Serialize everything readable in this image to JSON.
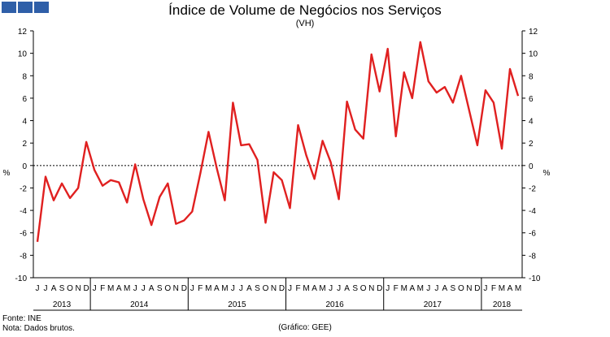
{
  "header": {
    "title": "Índice de Volume de Negócios nos Serviços",
    "subtitle": "(VH)"
  },
  "footer": {
    "source": "Fonte: INE",
    "note": "Nota: Dados brutos.",
    "credit": "(Gráfico: GEE)"
  },
  "colors": {
    "line": "#e02020",
    "logo": "#2f5fa8"
  },
  "chart_data": {
    "type": "line",
    "title": "Índice de Volume de Negócios nos Serviços",
    "subtitle": "(VH)",
    "ylabel_left": "%",
    "ylabel_right": "%",
    "ylim": [
      -10,
      12
    ],
    "yticks": [
      -10,
      -8,
      -6,
      -4,
      -2,
      0,
      2,
      4,
      6,
      8,
      10,
      12
    ],
    "grid": false,
    "month_labels": [
      "J",
      "J",
      "A",
      "S",
      "O",
      "N",
      "D",
      "J",
      "F",
      "M",
      "A",
      "M",
      "J",
      "J",
      "A",
      "S",
      "O",
      "N",
      "D",
      "J",
      "F",
      "M",
      "A",
      "M",
      "J",
      "J",
      "A",
      "S",
      "O",
      "N",
      "D",
      "J",
      "F",
      "M",
      "A",
      "M",
      "J",
      "J",
      "A",
      "S",
      "O",
      "N",
      "D",
      "J",
      "F",
      "M",
      "A",
      "M",
      "J",
      "J",
      "A",
      "S",
      "O",
      "N",
      "D",
      "J",
      "F",
      "M",
      "A",
      "M"
    ],
    "years": [
      {
        "label": "2013",
        "start": 0,
        "count": 7
      },
      {
        "label": "2014",
        "start": 7,
        "count": 12
      },
      {
        "label": "2015",
        "start": 19,
        "count": 12
      },
      {
        "label": "2016",
        "start": 31,
        "count": 12
      },
      {
        "label": "2017",
        "start": 43,
        "count": 12
      },
      {
        "label": "2018",
        "start": 55,
        "count": 5
      }
    ],
    "series": [
      {
        "color": "#e02020",
        "values": [
          -6.8,
          -1.0,
          -3.1,
          -1.6,
          -2.9,
          -2.0,
          2.1,
          -0.4,
          -1.8,
          -1.3,
          -1.5,
          -3.3,
          0.1,
          -3.0,
          -5.3,
          -2.8,
          -1.6,
          -5.2,
          -4.9,
          -4.1,
          -0.7,
          3.0,
          -0.2,
          -3.1,
          5.6,
          1.8,
          1.9,
          0.5,
          -5.1,
          -0.6,
          -1.3,
          -3.8,
          3.6,
          0.9,
          -1.2,
          2.2,
          0.3,
          -3.0,
          5.7,
          3.2,
          2.4,
          9.9,
          6.6,
          10.4,
          2.6,
          8.3,
          6.0,
          11.0,
          7.5,
          6.5,
          7.0,
          5.6,
          8.0,
          4.9,
          1.8,
          6.7,
          5.6,
          1.5,
          8.6,
          6.2
        ]
      }
    ]
  }
}
